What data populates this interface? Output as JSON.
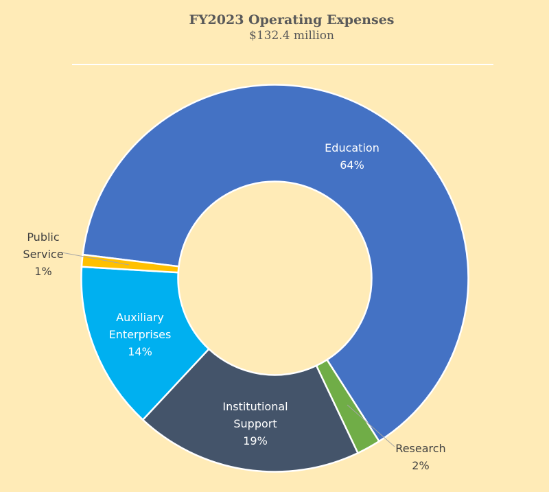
{
  "chart_data": {
    "type": "pie",
    "variant": "donut",
    "title": "FY2023 Operating Expenses",
    "subtitle": "$132.4 million",
    "unit": "%",
    "categories": [
      "Education",
      "Research",
      "Institutional Support",
      "Auxiliary Enterprises",
      "Public Service"
    ],
    "values": [
      64,
      2,
      19,
      14,
      1
    ],
    "labels": [
      {
        "lines": [
          "Education"
        ],
        "pct": "64%"
      },
      {
        "lines": [
          "Research"
        ],
        "pct": "2%"
      },
      {
        "lines": [
          "Institutional",
          "Support"
        ],
        "pct": "19%"
      },
      {
        "lines": [
          "Auxiliary",
          "Enterprises"
        ],
        "pct": "14%"
      },
      {
        "lines": [
          "Public",
          "Service"
        ],
        "pct": "1%"
      }
    ],
    "colors": [
      "#4472C4",
      "#70AD47",
      "#44546A",
      "#00B0F0",
      "#FFC000"
    ],
    "background": "#FFEBB7",
    "legend": "none"
  }
}
